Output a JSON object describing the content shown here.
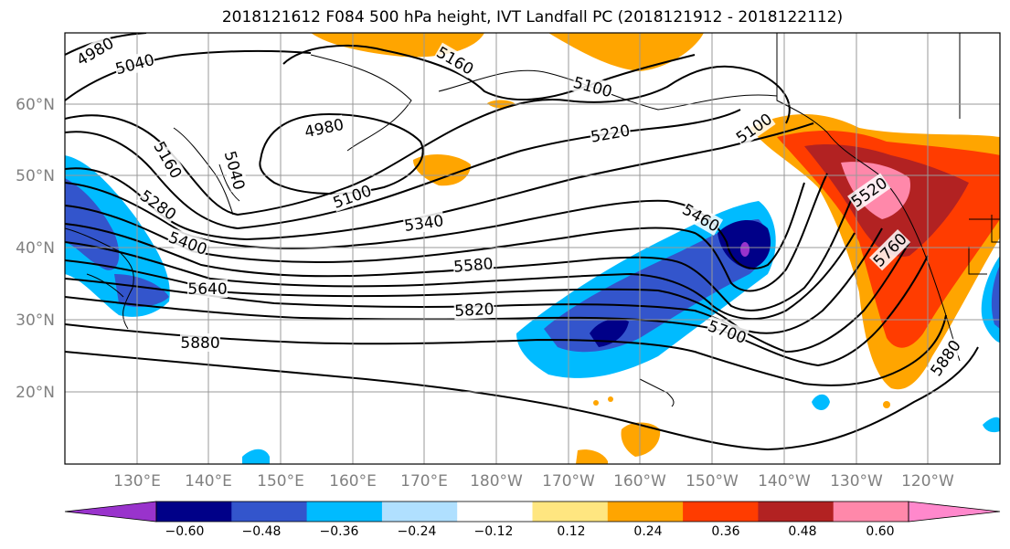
{
  "title": "2018121612 F084 500 hPa height, IVT Landfall PC (2018121912 - 2018122112)",
  "lat_labels": [
    "60°N",
    "50°N",
    "40°N",
    "30°N",
    "20°N"
  ],
  "lon_labels": [
    "130°E",
    "140°E",
    "150°E",
    "160°E",
    "170°E",
    "180°W",
    "170°W",
    "160°W",
    "150°W",
    "140°W",
    "130°W",
    "120°W"
  ],
  "colorbar": {
    "ticks": [
      "−0.60",
      "−0.48",
      "−0.36",
      "−0.24",
      "−0.12",
      "0.12",
      "0.24",
      "0.36",
      "0.48",
      "0.60"
    ],
    "colors": [
      "#9933cc",
      "#000088",
      "#3355cc",
      "#00bbff",
      "#b0e0ff",
      "#ffffff",
      "#ffe680",
      "#ffa500",
      "#ff3c00",
      "#b22222",
      "#ff88aa",
      "#ff88cc"
    ]
  },
  "contour_labels": [
    "4980",
    "5040",
    "5160",
    "5100",
    "4980",
    "5220",
    "5100",
    "5160",
    "5040",
    "5280",
    "5100",
    "5340",
    "5460",
    "5400",
    "5520",
    "5580",
    "5640",
    "5760",
    "5820",
    "5700",
    "5880",
    "5880"
  ]
}
